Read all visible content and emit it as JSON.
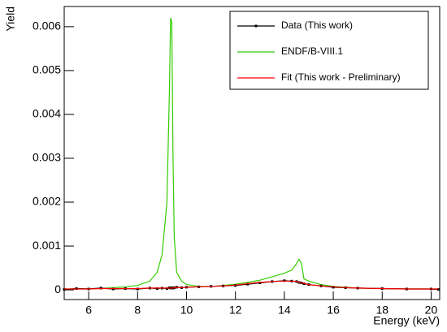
{
  "chart_data": {
    "type": "line",
    "x_label": "Energy (keV)",
    "y_label": "Yield",
    "x": [
      5,
      5.5,
      6,
      6.5,
      7,
      7.5,
      8,
      8.5,
      8.8,
      9.0,
      9.2,
      9.3,
      9.35,
      9.4,
      9.45,
      9.5,
      9.6,
      9.8,
      10,
      10.5,
      11,
      11.5,
      12,
      12.5,
      13,
      13.5,
      14,
      14.3,
      14.5,
      14.6,
      14.7,
      14.8,
      15,
      15.5,
      16,
      16.5,
      17,
      18,
      19,
      20,
      20.3
    ],
    "series": [
      {
        "name": "Data (This work)",
        "color": "#000000",
        "marker": true,
        "values": [
          1e-05,
          3e-05,
          2e-05,
          4e-05,
          2e-05,
          3e-05,
          2e-05,
          4e-05,
          3e-05,
          4e-05,
          3e-05,
          5e-05,
          4e-05,
          5e-05,
          4e-05,
          5e-05,
          6e-05,
          5e-05,
          6e-05,
          7e-05,
          8e-05,
          9e-05,
          0.0001,
          0.00013,
          0.00016,
          0.00019,
          0.00021,
          0.0002,
          0.00019,
          0.00017,
          0.00016,
          0.00014,
          0.00012,
          9e-05,
          6e-05,
          5e-05,
          4e-05,
          3e-05,
          2e-05,
          2e-05,
          1e-05
        ]
      },
      {
        "name": "ENDF/B-VIII.1",
        "color": "#33cc00",
        "marker": false,
        "values": [
          2e-05,
          2e-05,
          3e-05,
          3e-05,
          5e-05,
          7e-05,
          0.0001,
          0.0002,
          0.0004,
          0.0008,
          0.002,
          0.0045,
          0.0062,
          0.0061,
          0.003,
          0.0012,
          0.0004,
          0.0002,
          0.00012,
          8e-05,
          8e-05,
          0.0001,
          0.00013,
          0.00017,
          0.00022,
          0.0003,
          0.00038,
          0.00045,
          0.0006,
          0.0007,
          0.0006,
          0.00025,
          0.0002,
          0.00012,
          8e-05,
          6e-05,
          4e-05,
          3e-05,
          2e-05,
          2e-05,
          2e-05
        ]
      },
      {
        "name": "Fit (This work - Preliminary)",
        "color": "#ff0000",
        "marker": false,
        "values": [
          2e-05,
          2e-05,
          2e-05,
          3e-05,
          3e-05,
          3e-05,
          3e-05,
          4e-05,
          4e-05,
          4e-05,
          4e-05,
          4e-05,
          4e-05,
          4e-05,
          4e-05,
          5e-05,
          5e-05,
          5e-05,
          6e-05,
          7e-05,
          8e-05,
          9e-05,
          0.00011,
          0.00014,
          0.00017,
          0.00019,
          0.0002,
          0.0002,
          0.00019,
          0.00018,
          0.00016,
          0.00015,
          0.00012,
          9e-05,
          7e-05,
          5e-05,
          4e-05,
          3e-05,
          2e-05,
          2e-05,
          2e-05
        ]
      }
    ],
    "xlim": [
      5,
      20.35
    ],
    "ylim": [
      -0.00022,
      0.00646
    ],
    "xticks": [
      6,
      8,
      10,
      12,
      14,
      16,
      18,
      20
    ],
    "yticks": [
      0,
      0.001,
      0.002,
      0.003,
      0.004,
      0.005,
      0.006
    ],
    "grid": false
  }
}
